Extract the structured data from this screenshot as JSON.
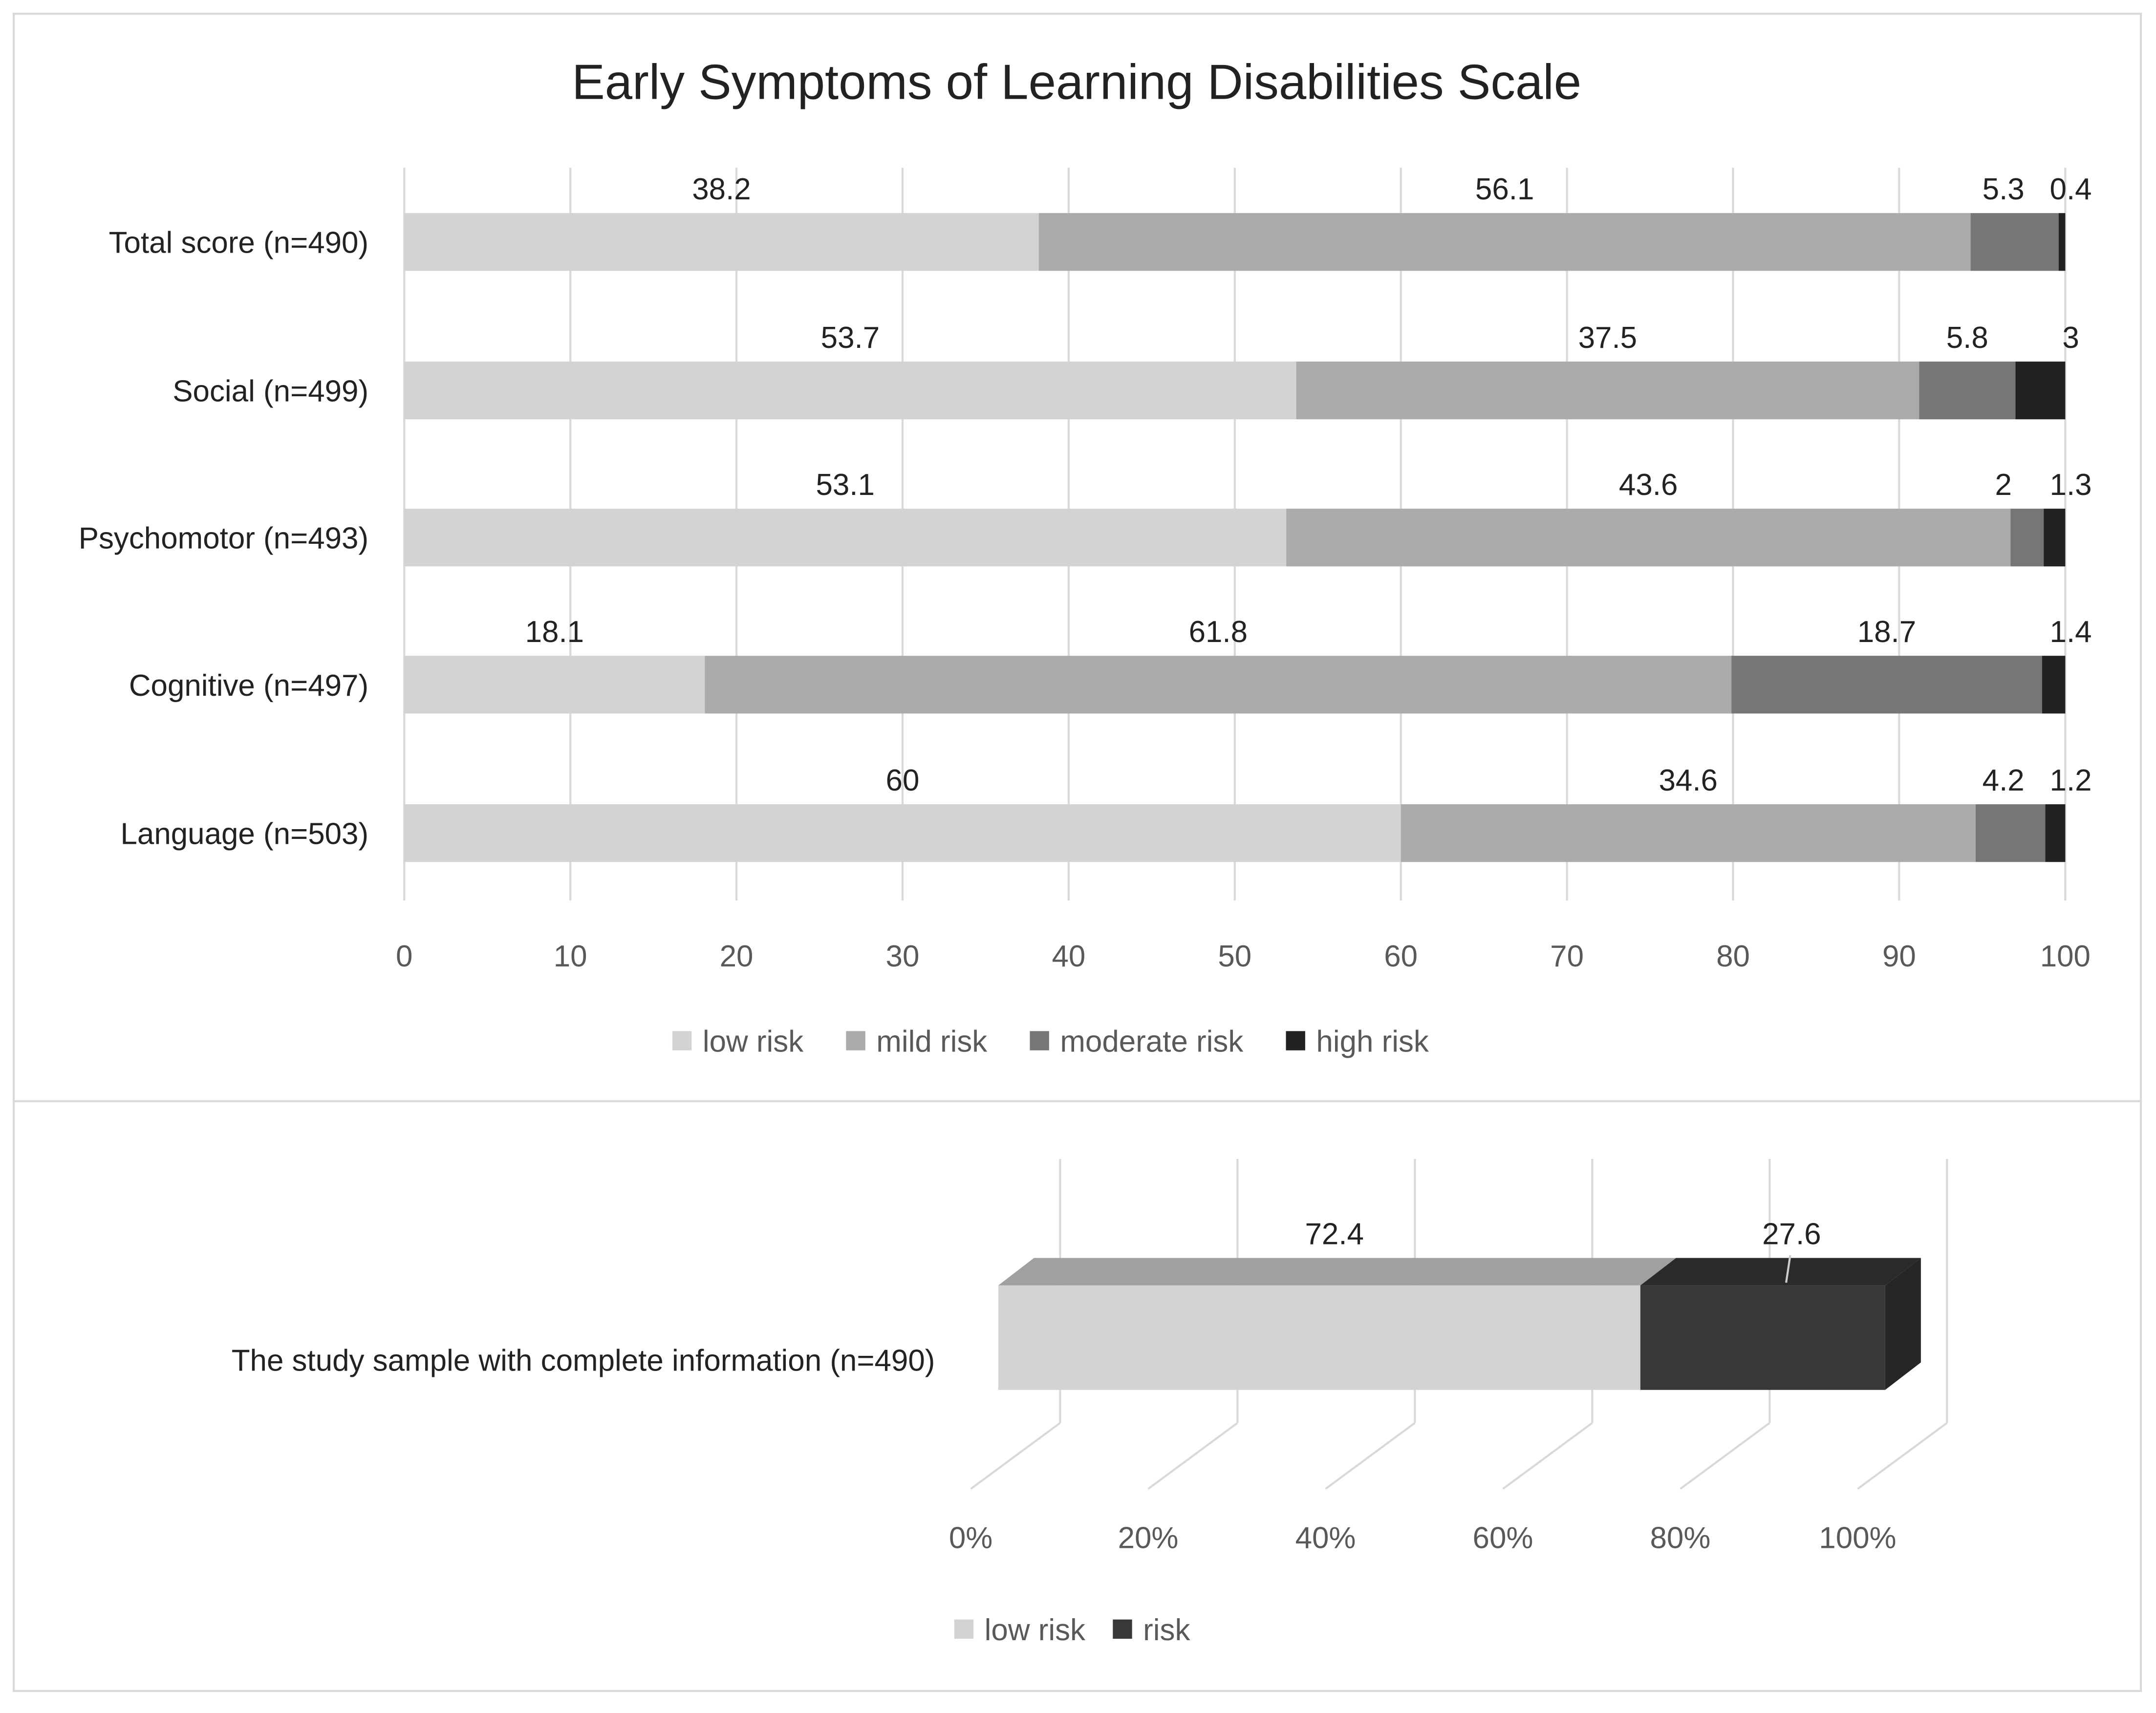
{
  "chart_data": [
    {
      "type": "bar",
      "orientation": "horizontal",
      "stacked": true,
      "title": "Early Symptoms of Learning Disabilities Scale",
      "categories": [
        "Total score (n=490)",
        "Social (n=499)",
        "Psychomotor (n=493)",
        "Cognitive (n=497)",
        "Language (n=503)"
      ],
      "series": [
        {
          "name": "low risk",
          "color": "#d3d3d3",
          "values": [
            38.2,
            53.7,
            53.1,
            18.1,
            60
          ]
        },
        {
          "name": "mild risk",
          "color": "#ababab",
          "values": [
            56.1,
            37.5,
            43.6,
            61.8,
            34.6
          ]
        },
        {
          "name": "moderate risk",
          "color": "#767676",
          "values": [
            5.3,
            5.8,
            2,
            18.7,
            4.2
          ]
        },
        {
          "name": "high risk",
          "color": "#222222",
          "values": [
            0.4,
            3,
            1.3,
            1.4,
            1.2
          ]
        }
      ],
      "xlim": [
        0,
        100
      ],
      "xticks": [
        "0",
        "10",
        "20",
        "30",
        "40",
        "50",
        "60",
        "70",
        "80",
        "90",
        "100"
      ],
      "grid": true,
      "legend": "bottom"
    },
    {
      "type": "bar",
      "orientation": "horizontal",
      "stacked": true,
      "style": "3d",
      "categories": [
        "The study sample with complete information (n=490)"
      ],
      "series": [
        {
          "name": "low risk",
          "color": "#d3d3d3",
          "values": [
            72.4
          ]
        },
        {
          "name": "risk",
          "color": "#383838",
          "values": [
            27.6
          ]
        }
      ],
      "xlim": [
        0,
        100
      ],
      "xticks": [
        "0%",
        "20%",
        "40%",
        "60%",
        "80%",
        "100%"
      ],
      "grid": true,
      "legend": "bottom"
    }
  ]
}
